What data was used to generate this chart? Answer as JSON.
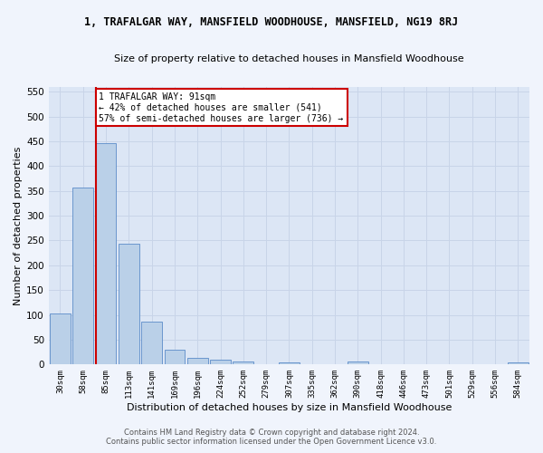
{
  "title": "1, TRAFALGAR WAY, MANSFIELD WOODHOUSE, MANSFIELD, NG19 8RJ",
  "subtitle": "Size of property relative to detached houses in Mansfield Woodhouse",
  "xlabel": "Distribution of detached houses by size in Mansfield Woodhouse",
  "ylabel": "Number of detached properties",
  "footer_line1": "Contains HM Land Registry data © Crown copyright and database right 2024.",
  "footer_line2": "Contains public sector information licensed under the Open Government Licence v3.0.",
  "bar_color": "#bad0e8",
  "bar_edge_color": "#5b8cc8",
  "grid_color": "#c8d4e8",
  "background_color": "#dce6f5",
  "fig_background_color": "#f0f4fc",
  "annotation_box_color": "#ffffff",
  "annotation_border_color": "#cc0000",
  "vline_color": "#cc0000",
  "categories": [
    "30sqm",
    "58sqm",
    "85sqm",
    "113sqm",
    "141sqm",
    "169sqm",
    "196sqm",
    "224sqm",
    "252sqm",
    "279sqm",
    "307sqm",
    "335sqm",
    "362sqm",
    "390sqm",
    "418sqm",
    "446sqm",
    "473sqm",
    "501sqm",
    "529sqm",
    "556sqm",
    "584sqm"
  ],
  "values": [
    102,
    356,
    447,
    243,
    86,
    30,
    14,
    9,
    6,
    0,
    5,
    0,
    0,
    6,
    0,
    0,
    0,
    0,
    0,
    0,
    5
  ],
  "ylim": [
    0,
    560
  ],
  "yticks": [
    0,
    50,
    100,
    150,
    200,
    250,
    300,
    350,
    400,
    450,
    500,
    550
  ],
  "vline_x_index": 2,
  "annotation_line1": "1 TRAFALGAR WAY: 91sqm",
  "annotation_line2": "← 42% of detached houses are smaller (541)",
  "annotation_line3": "57% of semi-detached houses are larger (736) →"
}
